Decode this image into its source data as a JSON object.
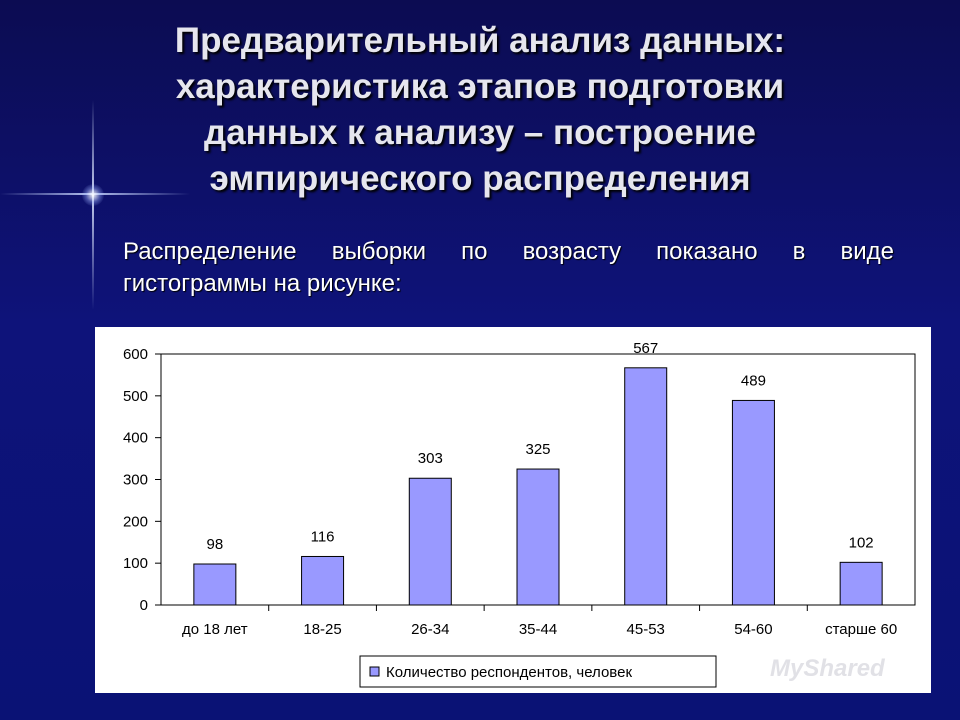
{
  "slide": {
    "title_lines": [
      "Предварительный анализ данных:",
      "характеристика этапов подготовки",
      "данных к анализу – построение",
      "эмпирического распределения"
    ],
    "body_lines": [
      "Распределение выборки по возрасту показано в виде",
      "гистограммы на рисунке:"
    ],
    "watermark": "MyShared"
  },
  "colors": {
    "bar_fill": "#9999ff",
    "bar_stroke": "#000000",
    "background": "#0e137a",
    "title_text": "#e6e6ee"
  },
  "chart_data": {
    "type": "bar",
    "categories": [
      "до 18 лет",
      "18-25",
      "26-34",
      "35-44",
      "45-53",
      "54-60",
      "старше 60"
    ],
    "series": [
      {
        "name": "Количество респондентов, человек",
        "values": [
          98,
          116,
          303,
          325,
          567,
          489,
          102
        ]
      }
    ],
    "ylim": [
      0,
      600
    ],
    "yticks": [
      0,
      100,
      200,
      300,
      400,
      500,
      600
    ],
    "grid": false,
    "legend": "bottom",
    "data_labels": true
  }
}
